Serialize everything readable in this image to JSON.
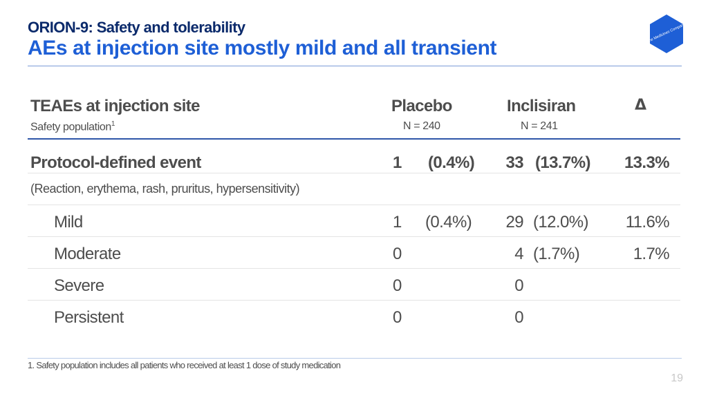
{
  "header": {
    "kicker": "ORION-9: Safety and tolerability",
    "title": "AEs at injection site mostly mild and all transient",
    "logo_text": "The Medicines Company",
    "logo_color": "#1e5fd6"
  },
  "table": {
    "col_headers": {
      "category": "TEAEs at injection site",
      "placebo": "Placebo",
      "inclisiran": "Inclisiran",
      "delta": "Δ"
    },
    "sub_headers": {
      "population": "Safety population",
      "population_ref": "1",
      "placebo_n": "N = 240",
      "inclisiran_n": "N = 241"
    },
    "protocol_row": {
      "label": "Protocol-defined event",
      "placebo_count": "1",
      "placebo_pct": "(0.4%)",
      "inclisiran_count": "33",
      "inclisiran_pct": "(13.7%)",
      "delta": "13.3%"
    },
    "protocol_note": "(Reaction, erythema, rash, pruritus, hypersensitivity)",
    "rows": [
      {
        "label": "Mild",
        "placebo_count": "1",
        "placebo_pct": "(0.4%)",
        "inclisiran_count": "29",
        "inclisiran_pct": "(12.0%)",
        "delta": "11.6%"
      },
      {
        "label": "Moderate",
        "placebo_count": "0",
        "placebo_pct": "",
        "inclisiran_count": "4",
        "inclisiran_pct": "(1.7%)",
        "delta": "1.7%"
      },
      {
        "label": "Severe",
        "placebo_count": "0",
        "placebo_pct": "",
        "inclisiran_count": "0",
        "inclisiran_pct": "",
        "delta": ""
      },
      {
        "label": "Persistent",
        "placebo_count": "0",
        "placebo_pct": "",
        "inclisiran_count": "0",
        "inclisiran_pct": "",
        "delta": ""
      }
    ]
  },
  "footnote": "1. Safety population includes all patients who received at least 1 dose of study medication",
  "page_number": "19"
}
